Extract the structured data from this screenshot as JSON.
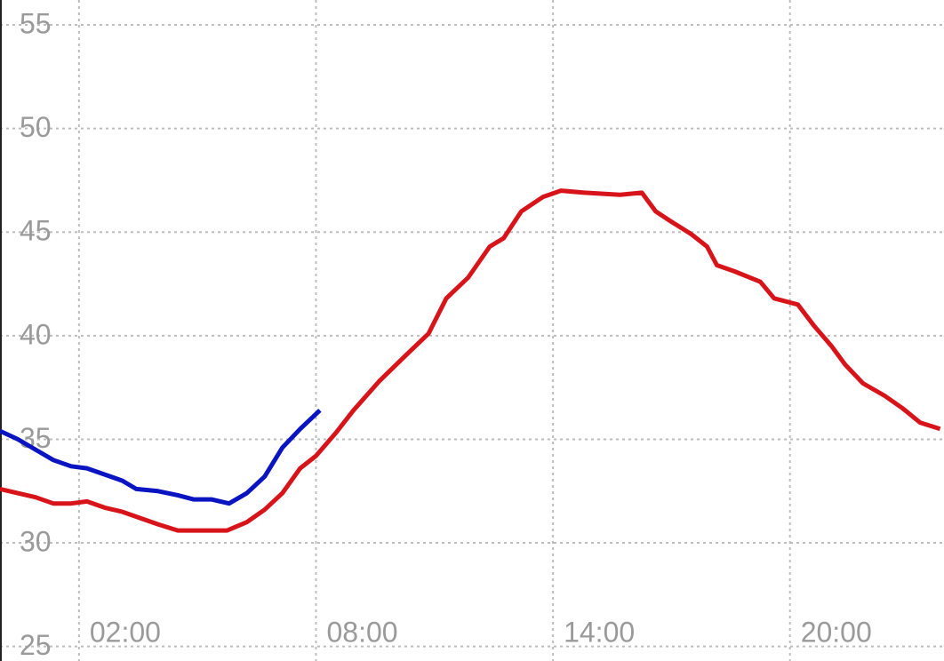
{
  "chart_data": {
    "type": "line",
    "x_units": "hours",
    "xlim": [
      0,
      23.9
    ],
    "ylim": [
      24.3,
      56.2
    ],
    "xticks": [
      {
        "value": 2,
        "label": "02:00"
      },
      {
        "value": 8,
        "label": "08:00"
      },
      {
        "value": 14,
        "label": "14:00"
      },
      {
        "value": 20,
        "label": "20:00"
      }
    ],
    "yticks": [
      25,
      30,
      35,
      40,
      45,
      50,
      55
    ],
    "grid": true,
    "series": [
      {
        "color": "#d7141a",
        "x": [
          0,
          0.45,
          0.9,
          1.35,
          1.8,
          2.2,
          2.65,
          3.1,
          3.55,
          4.0,
          4.5,
          4.9,
          5.75,
          6.25,
          6.7,
          7.15,
          7.6,
          8.0,
          8.5,
          8.95,
          9.6,
          10.3,
          10.85,
          11.3,
          11.85,
          12.4,
          12.75,
          13.2,
          13.75,
          14.2,
          14.8,
          15.7,
          16.25,
          16.6,
          17.0,
          17.5,
          17.9,
          18.15,
          18.6,
          19.25,
          19.6,
          20.2,
          20.6,
          21.05,
          21.4,
          21.85,
          22.4,
          22.85,
          23.3,
          23.8
        ],
        "values": [
          32.6,
          32.4,
          32.2,
          31.9,
          31.9,
          32.0,
          31.7,
          31.5,
          31.2,
          30.9,
          30.6,
          30.6,
          30.6,
          31.0,
          31.6,
          32.4,
          33.6,
          34.2,
          35.3,
          36.4,
          37.8,
          39.1,
          40.1,
          41.8,
          42.8,
          44.3,
          44.7,
          46.0,
          46.7,
          47.0,
          46.9,
          46.8,
          46.9,
          46.0,
          45.5,
          44.9,
          44.3,
          43.4,
          43.1,
          42.6,
          41.8,
          41.5,
          40.5,
          39.5,
          38.6,
          37.7,
          37.1,
          36.5,
          35.8,
          35.5
        ]
      },
      {
        "color": "#0a14c0",
        "x": [
          0,
          0.45,
          0.9,
          1.35,
          1.8,
          2.2,
          2.65,
          3.1,
          3.45,
          4.0,
          4.5,
          4.9,
          5.35,
          5.8,
          6.25,
          6.7,
          7.15,
          7.6,
          8.1
        ],
        "values": [
          35.4,
          35.0,
          34.5,
          34.0,
          33.7,
          33.6,
          33.3,
          33.0,
          32.6,
          32.5,
          32.3,
          32.1,
          32.1,
          31.9,
          32.4,
          33.2,
          34.6,
          35.5,
          36.4
        ]
      }
    ]
  }
}
